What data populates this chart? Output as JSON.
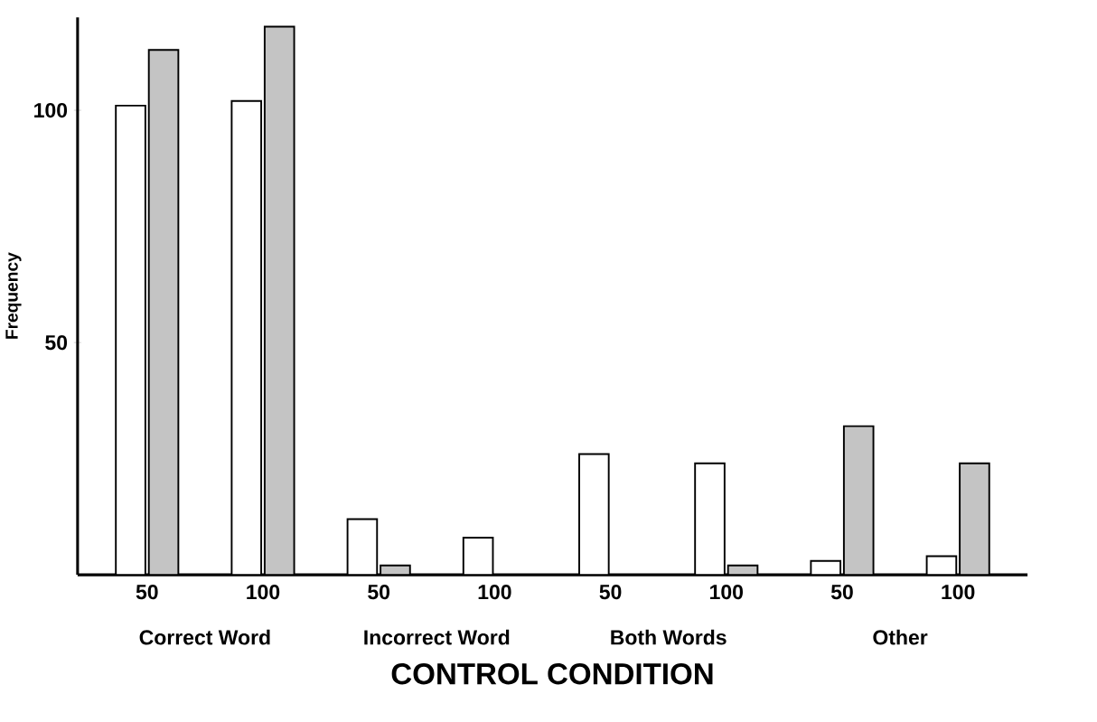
{
  "chart_data": {
    "type": "bar",
    "xlabel": "CONTROL CONDITION",
    "ylabel": "Frequency",
    "categories": [
      "50",
      "100",
      "50",
      "100",
      "50",
      "100",
      "50",
      "100"
    ],
    "series": [
      {
        "color": "#ffffff",
        "values": [
          101,
          102,
          12,
          8,
          26,
          24,
          3,
          4
        ]
      },
      {
        "color": "#c4c4c4",
        "values": [
          113,
          118,
          2,
          null,
          null,
          2,
          32,
          24
        ]
      }
    ],
    "annotations": [
      "Correct Word",
      "Incorrect Word",
      "Both Words",
      "Other"
    ],
    "ylim": [
      0,
      120
    ],
    "yticks": [
      50,
      100
    ],
    "grid": false
  }
}
